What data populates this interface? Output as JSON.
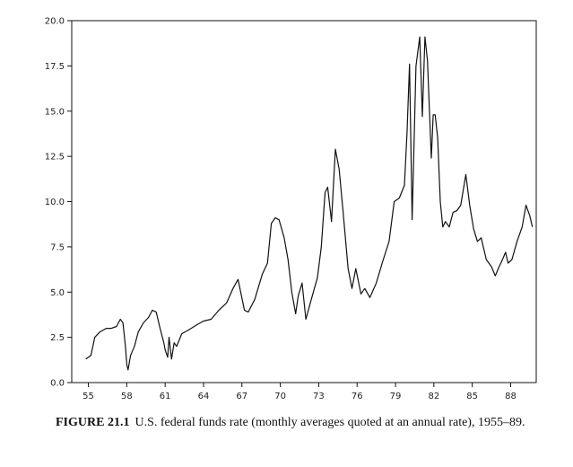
{
  "caption": {
    "figure_number": "FIGURE 21.1",
    "text": "U.S. federal funds rate (monthly averages quoted at an annual rate), 1955–89."
  },
  "chart_data": {
    "type": "line",
    "title": "",
    "xlabel": "",
    "ylabel": "",
    "xlim": [
      1953.7,
      1990.0
    ],
    "ylim": [
      0,
      20
    ],
    "grid": false,
    "yticks": [
      0,
      2.5,
      5,
      7.5,
      10,
      12.5,
      15,
      17.5,
      20
    ],
    "ytick_labels": [
      "0.0",
      "2.5",
      "5.0",
      "7.5",
      "10.0",
      "12.5",
      "15.0",
      "17.5",
      "20.0"
    ],
    "xticks": [
      1955,
      1958,
      1961,
      1964,
      1967,
      1970,
      1973,
      1976,
      1979,
      1982,
      1985,
      1988
    ],
    "xtick_labels": [
      "55",
      "58",
      "61",
      "64",
      "67",
      "70",
      "73",
      "76",
      "79",
      "82",
      "85",
      "88"
    ],
    "series": [
      {
        "x": [
          1954.8,
          1955.2,
          1955.5,
          1955.9,
          1956.4,
          1956.8,
          1957.2,
          1957.5,
          1957.7,
          1957.9,
          1958.0,
          1958.1,
          1958.3,
          1958.6,
          1958.9,
          1959.3,
          1959.7,
          1960.0,
          1960.3,
          1960.6,
          1960.9,
          1961.0,
          1961.2,
          1961.3,
          1961.5,
          1961.7,
          1961.9,
          1962.3,
          1962.8,
          1963.5,
          1964.0,
          1964.6,
          1965.2,
          1965.8,
          1966.3,
          1966.7,
          1966.9,
          1967.2,
          1967.5,
          1968.0,
          1968.6,
          1969.0,
          1969.3,
          1969.6,
          1969.9,
          1970.3,
          1970.6,
          1970.9,
          1971.2,
          1971.4,
          1971.7,
          1972.0,
          1972.5,
          1972.9,
          1973.2,
          1973.5,
          1973.7,
          1974.0,
          1974.3,
          1974.6,
          1974.9,
          1975.3,
          1975.6,
          1975.9,
          1976.3,
          1976.6,
          1977.0,
          1977.5,
          1978.0,
          1978.5,
          1978.9,
          1979.3,
          1979.7,
          1979.9,
          1980.1,
          1980.3,
          1980.6,
          1980.9,
          1981.1,
          1981.3,
          1981.5,
          1981.8,
          1981.95,
          1982.1,
          1982.3,
          1982.5,
          1982.7,
          1982.9,
          1983.2,
          1983.5,
          1983.8,
          1984.1,
          1984.5,
          1984.8,
          1985.1,
          1985.4,
          1985.7,
          1986.1,
          1986.5,
          1986.8,
          1987.1,
          1987.3,
          1987.6,
          1987.8,
          1988.1,
          1988.5,
          1988.9,
          1989.2,
          1989.5,
          1989.7
        ],
        "values": [
          1.3,
          1.5,
          2.5,
          2.8,
          3.0,
          3.0,
          3.1,
          3.5,
          3.3,
          2.0,
          1.0,
          0.7,
          1.5,
          2.0,
          2.8,
          3.3,
          3.6,
          4.0,
          3.9,
          3.0,
          2.2,
          1.8,
          1.4,
          2.5,
          1.3,
          2.2,
          2.0,
          2.7,
          2.9,
          3.2,
          3.4,
          3.5,
          4.0,
          4.4,
          5.2,
          5.7,
          5.0,
          4.0,
          3.9,
          4.6,
          6.0,
          6.6,
          8.8,
          9.1,
          9.0,
          8.0,
          6.8,
          5.0,
          3.8,
          4.8,
          5.5,
          3.5,
          4.8,
          5.8,
          7.5,
          10.5,
          10.8,
          8.9,
          12.9,
          11.8,
          9.5,
          6.3,
          5.2,
          6.3,
          4.9,
          5.2,
          4.7,
          5.5,
          6.7,
          7.8,
          10.0,
          10.2,
          10.9,
          13.8,
          17.6,
          9.0,
          17.5,
          19.1,
          14.7,
          19.1,
          17.8,
          12.4,
          14.8,
          14.8,
          13.5,
          10.0,
          8.6,
          8.9,
          8.6,
          9.4,
          9.5,
          9.8,
          11.5,
          9.8,
          8.5,
          7.8,
          8.0,
          6.8,
          6.4,
          5.9,
          6.4,
          6.7,
          7.2,
          6.6,
          6.8,
          7.8,
          8.6,
          9.8,
          9.2,
          8.6
        ]
      }
    ]
  }
}
